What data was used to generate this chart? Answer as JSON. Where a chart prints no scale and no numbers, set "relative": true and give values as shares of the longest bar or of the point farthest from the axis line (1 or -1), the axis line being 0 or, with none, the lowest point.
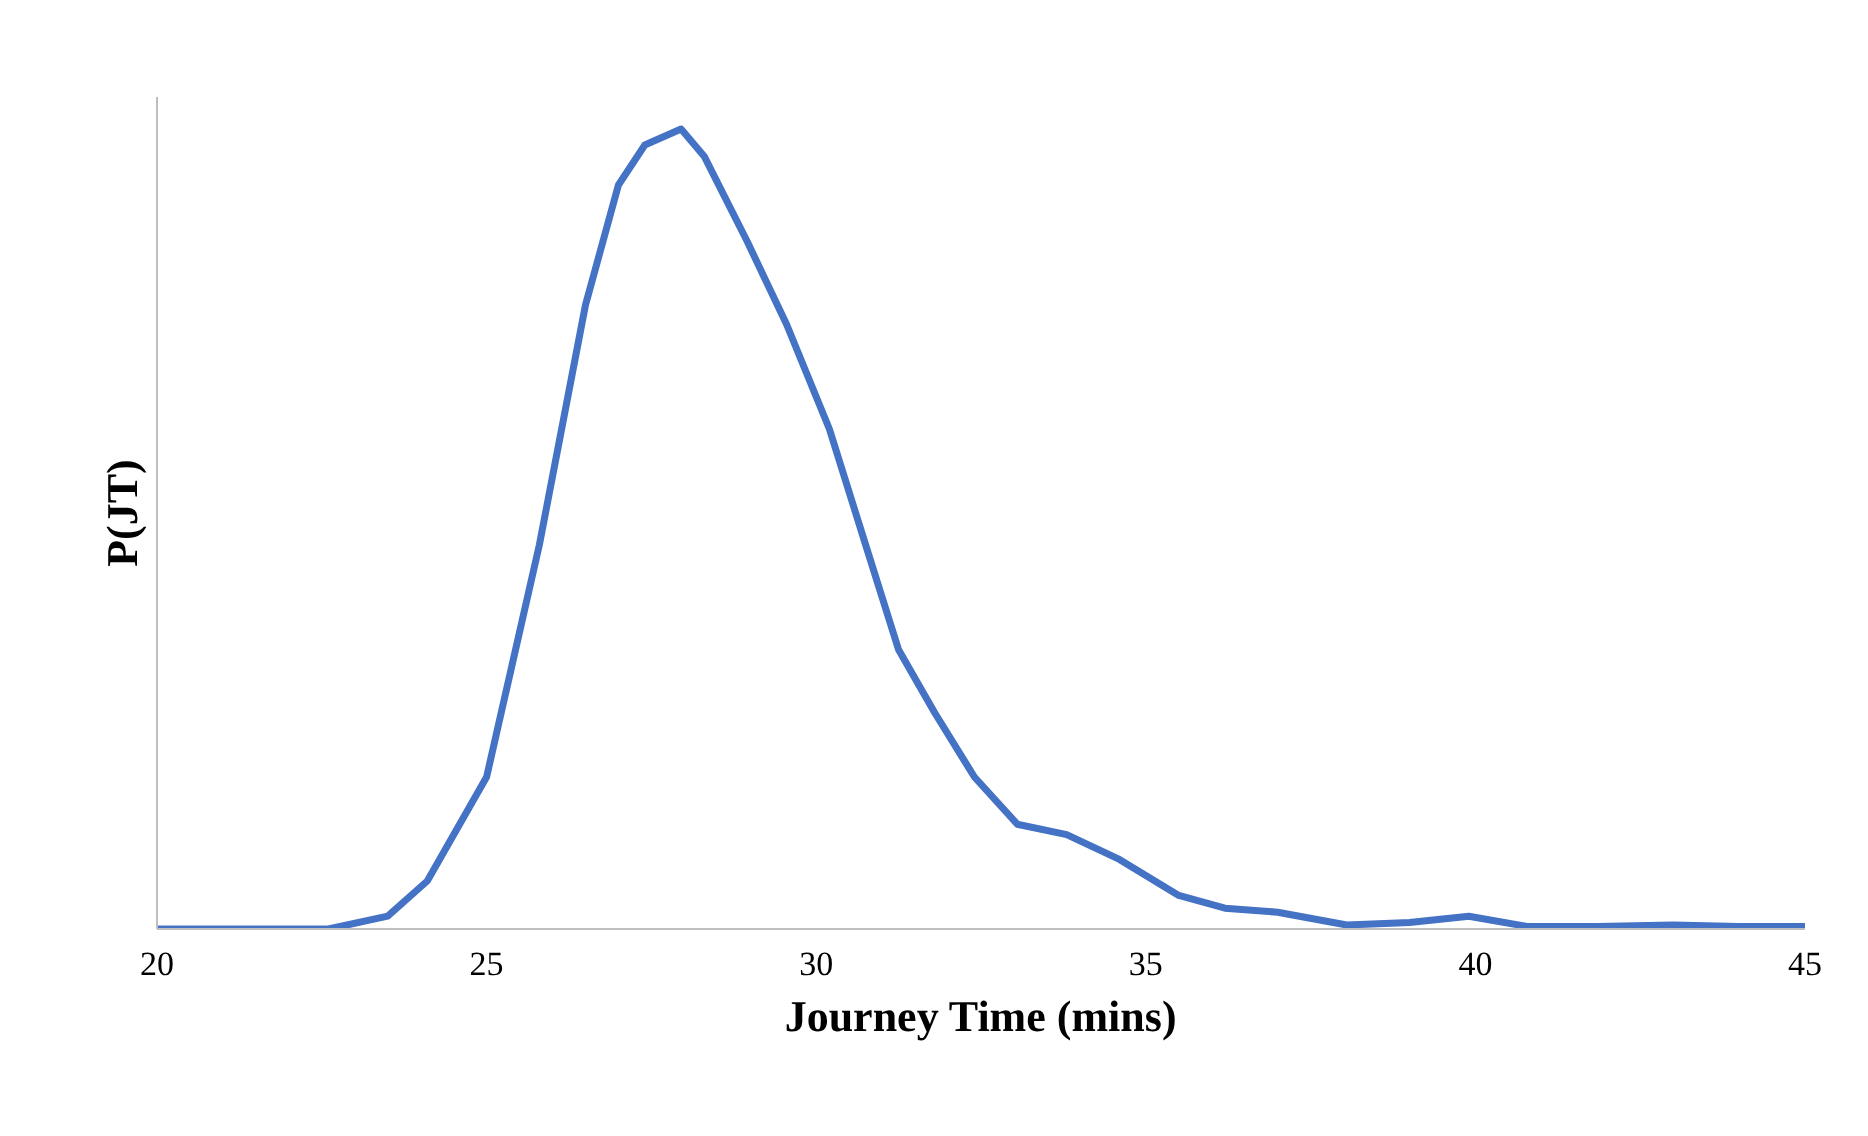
{
  "chart_data": {
    "type": "line",
    "xlabel": "Journey Time (mins)",
    "ylabel": "P(JT)",
    "relative": true,
    "xlim": [
      20,
      45
    ],
    "xticks": [
      20,
      25,
      30,
      35,
      40,
      45
    ],
    "marker": "none",
    "line_style": "solid",
    "x": [
      20,
      22.6,
      23.5,
      24.1,
      25.0,
      25.8,
      26.5,
      27.0,
      27.4,
      27.95,
      28.3,
      28.95,
      29.55,
      30.2,
      30.8,
      31.25,
      31.8,
      32.4,
      33.05,
      33.8,
      34.6,
      35.5,
      36.2,
      37.0,
      38.05,
      39.0,
      39.9,
      40.8,
      41.85,
      43.0,
      44.0,
      45
    ],
    "series": [
      {
        "color": "#4472c4",
        "values": [
          0,
          0,
          0.016,
          0.06,
          0.19,
          0.48,
          0.78,
          0.93,
          0.98,
          1,
          0.966,
          0.86,
          0.756,
          0.625,
          0.467,
          0.349,
          0.27,
          0.19,
          0.131,
          0.118,
          0.087,
          0.042,
          0.026,
          0.021,
          0.005,
          0.008,
          0.016,
          0.003,
          0.003,
          0.005,
          0.003,
          0.003
        ]
      }
    ]
  }
}
